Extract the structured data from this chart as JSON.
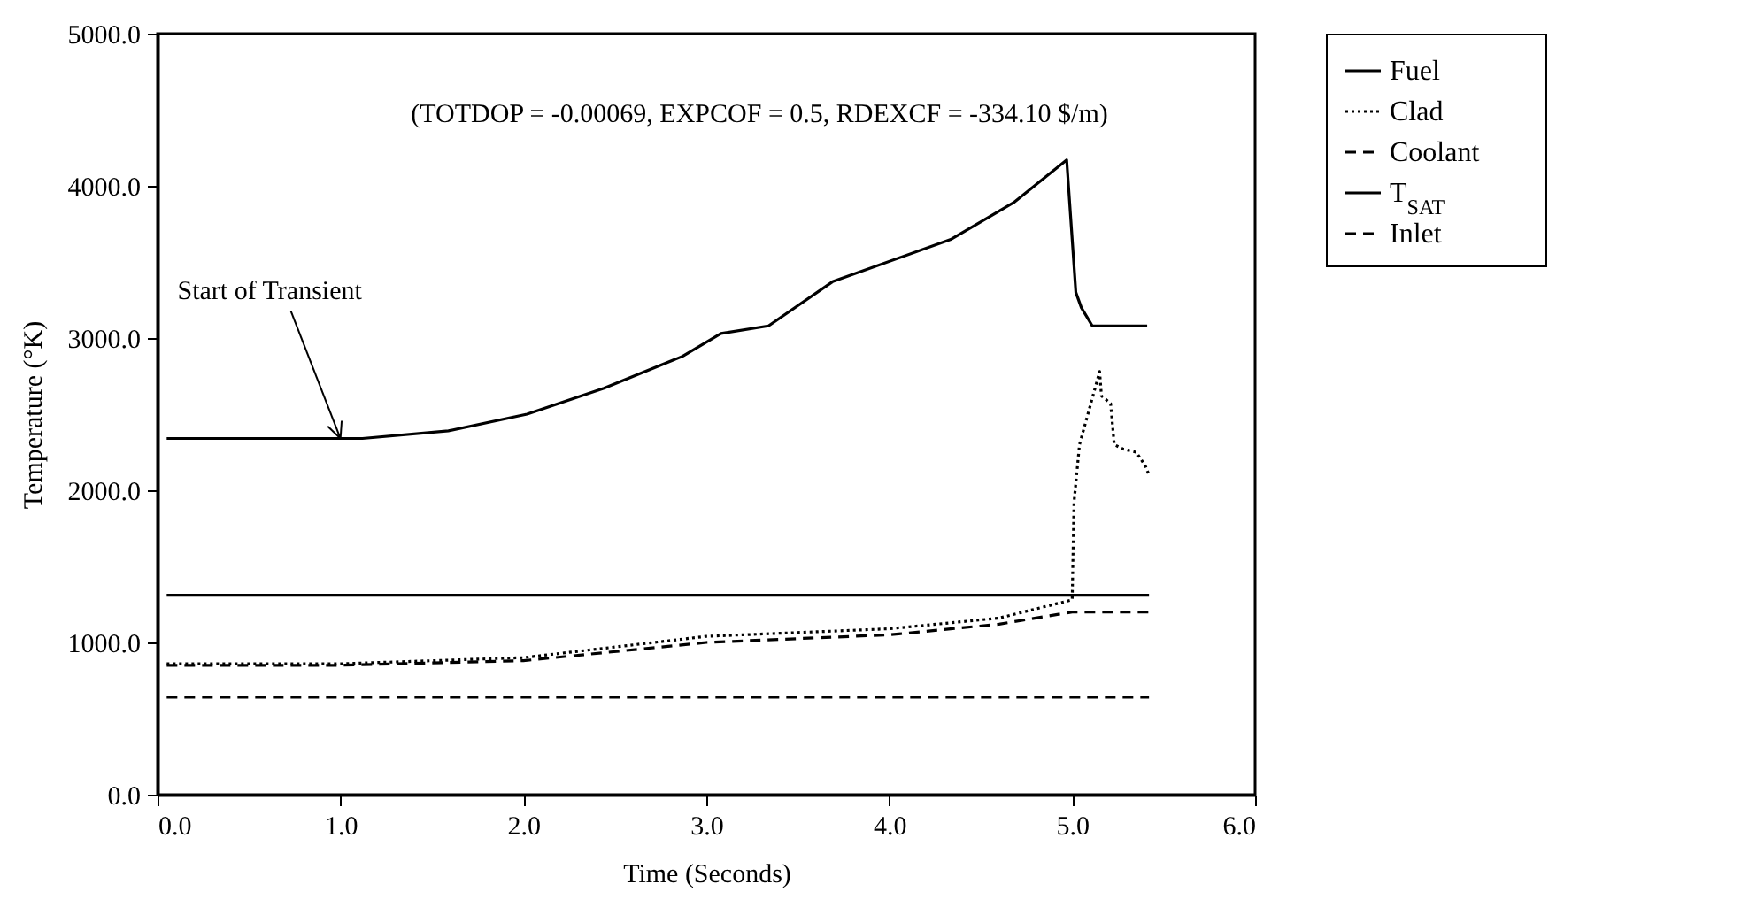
{
  "chart_data": {
    "type": "line",
    "xlabel": "Time (Seconds)",
    "ylabel": "Temperature (°K)",
    "xlim": [
      0,
      6
    ],
    "xticks": [
      {
        "value": 0,
        "label": "0.0"
      },
      {
        "value": 1,
        "label": "1.0"
      },
      {
        "value": 2,
        "label": "2.0"
      },
      {
        "value": 3,
        "label": "3.0"
      },
      {
        "value": 4,
        "label": "4.0"
      },
      {
        "value": 5,
        "label": "5.0"
      },
      {
        "value": 6,
        "label": "6.0"
      }
    ],
    "ylim": [
      0,
      5000
    ],
    "yticks": [
      {
        "value": 0,
        "label": "0.0"
      },
      {
        "value": 1000,
        "label": "1000.0"
      },
      {
        "value": 2000,
        "label": "2000.0"
      },
      {
        "value": 3000,
        "label": "3000.0"
      },
      {
        "value": 4000,
        "label": "4000.0"
      },
      {
        "value": 5000,
        "label": "5000.0"
      }
    ],
    "grid": false,
    "legend": "right",
    "marker": "none",
    "annotations": [
      "(TOTDOP = -0.00069, EXPCOF = 0.5, RDEXCF = -334.10 $/m)",
      {
        "text": "Start of Transient",
        "x": 1.0,
        "y": 2340
      }
    ],
    "series": [
      {
        "name": "Fuel",
        "color": "#000000",
        "line_style": "solid",
        "x": [
          0.05,
          1.12,
          1.59,
          2.02,
          2.44,
          2.87,
          3.08,
          3.34,
          3.69,
          4.34,
          4.68,
          4.97,
          5.02,
          5.05,
          5.11,
          5.41
        ],
        "values": [
          2340,
          2340,
          2390,
          2500,
          2670,
          2880,
          3030,
          3080,
          3370,
          3650,
          3890,
          4170,
          3300,
          3200,
          3080,
          3080
        ]
      },
      {
        "name": "Clad",
        "color": "#000000",
        "line_style": "dotted",
        "x": [
          0.05,
          1.0,
          2.0,
          3.0,
          4.0,
          4.6,
          5.0,
          5.01,
          5.04,
          5.15,
          5.16,
          5.21,
          5.23,
          5.28,
          5.35,
          5.4,
          5.42
        ],
        "values": [
          860,
          860,
          900,
          1040,
          1090,
          1160,
          1280,
          1920,
          2300,
          2780,
          2620,
          2570,
          2300,
          2270,
          2250,
          2160,
          2100
        ]
      },
      {
        "name": "Coolant",
        "color": "#000000",
        "line_style": "dashed",
        "x": [
          0.05,
          1.0,
          2.0,
          3.0,
          4.0,
          4.6,
          5.0,
          5.42
        ],
        "values": [
          850,
          850,
          880,
          1000,
          1050,
          1120,
          1200,
          1200
        ]
      },
      {
        "name": "T$_{SAT}$",
        "color": "#000000",
        "line_style": "solid",
        "x": [
          0.05,
          5.42
        ],
        "values": [
          1310,
          1310
        ]
      },
      {
        "name": "Inlet",
        "color": "#000000",
        "line_style": "dashed",
        "x": [
          0.05,
          5.42
        ],
        "values": [
          640,
          640
        ]
      }
    ]
  }
}
